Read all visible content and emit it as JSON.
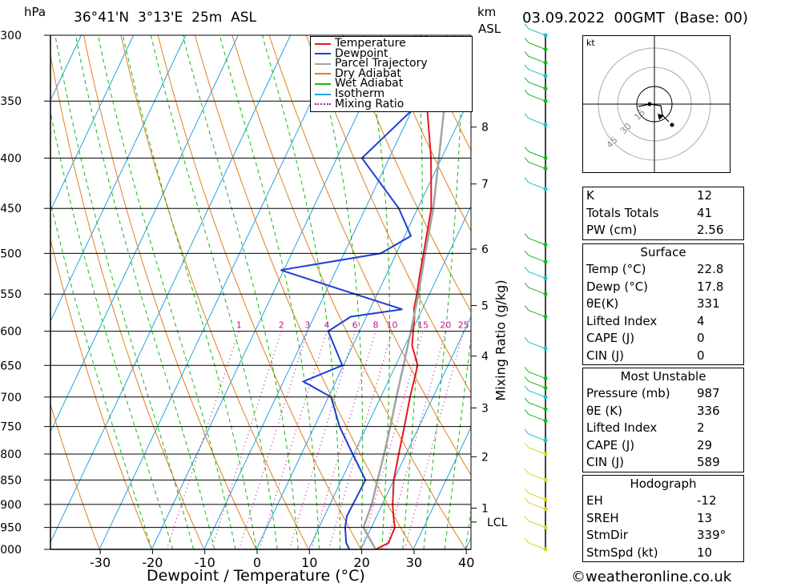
{
  "header": {
    "hpa_unit": "hPa",
    "location": "36°41'N  3°13'E  25m  ASL",
    "km_unit": "km",
    "asl_unit": "ASL",
    "datetime": "03.09.2022  00GMT  (Base: 00)"
  },
  "legend": [
    {
      "label": "Temperature",
      "color": "#e8171d",
      "style": "solid"
    },
    {
      "label": "Dewpoint",
      "color": "#1f3fd4",
      "style": "solid"
    },
    {
      "label": "Parcel Trajectory",
      "color": "#a3a3a3",
      "style": "solid"
    },
    {
      "label": "Dry Adiabat",
      "color": "#e0801c",
      "style": "solid"
    },
    {
      "label": "Wet Adiabat",
      "color": "#14b814",
      "style": "solid"
    },
    {
      "label": "Isotherm",
      "color": "#21a3e0",
      "style": "solid"
    },
    {
      "label": "Mixing Ratio",
      "color": "#c0148e",
      "style": "dotted"
    }
  ],
  "chart_data": {
    "type": "line",
    "title": "36°41'N  3°13'E  25m  ASL",
    "xlabel": "Dewpoint / Temperature (°C)",
    "ylabel": "hPa",
    "xlim": [
      -40,
      40
    ],
    "x_ticks": [
      -30,
      -20,
      -10,
      0,
      10,
      20,
      30,
      40
    ],
    "pressure_levels": [
      300,
      350,
      400,
      450,
      500,
      550,
      600,
      650,
      700,
      750,
      800,
      850,
      900,
      950,
      1000
    ],
    "y_scale": "log-pressure",
    "km_ticks": [
      {
        "label": "1",
        "p": 908
      },
      {
        "label": "2",
        "p": 805
      },
      {
        "label": "3",
        "p": 718
      },
      {
        "label": "4",
        "p": 636
      },
      {
        "label": "5",
        "p": 565
      },
      {
        "label": "6",
        "p": 495
      },
      {
        "label": "7",
        "p": 425
      },
      {
        "label": "8",
        "p": 372
      }
    ],
    "lcl": {
      "label": "LCL",
      "p": 938
    },
    "mixing_ratio_label": "Mixing Ratio (g/kg)",
    "mixing_ratios": [
      "1",
      "2",
      "3",
      "4",
      "6",
      "8",
      "10",
      "15",
      "20",
      "25"
    ],
    "series": [
      {
        "name": "Temperature",
        "points": [
          [
            1000,
            22.8
          ],
          [
            985,
            24.7
          ],
          [
            950,
            24.5
          ],
          [
            925,
            23.2
          ],
          [
            900,
            22.0
          ],
          [
            850,
            20.0
          ],
          [
            800,
            18.6
          ],
          [
            750,
            17.2
          ],
          [
            700,
            15.6
          ],
          [
            650,
            14.2
          ],
          [
            620,
            11.3
          ],
          [
            580,
            9.2
          ],
          [
            570,
            8.4
          ],
          [
            550,
            7.6
          ],
          [
            530,
            6.6
          ],
          [
            500,
            5.2
          ],
          [
            450,
            2.6
          ],
          [
            400,
            -2.0
          ],
          [
            350,
            -8.0
          ],
          [
            300,
            -15.0
          ]
        ]
      },
      {
        "name": "Dewpoint",
        "points": [
          [
            1000,
            17.8
          ],
          [
            985,
            16.6
          ],
          [
            950,
            15.0
          ],
          [
            925,
            14.3
          ],
          [
            900,
            14.4
          ],
          [
            850,
            14.6
          ],
          [
            800,
            9.8
          ],
          [
            750,
            4.8
          ],
          [
            700,
            0.5
          ],
          [
            675,
            -6.2
          ],
          [
            650,
            -0.2
          ],
          [
            600,
            -6.0
          ],
          [
            580,
            -3.0
          ],
          [
            570,
            6.2
          ],
          [
            520,
            -20.6
          ],
          [
            500,
            -3.0
          ],
          [
            480,
            1.2
          ],
          [
            450,
            -3.6
          ],
          [
            400,
            -15.2
          ],
          [
            350,
            -9.0
          ],
          [
            300,
            -14.0
          ]
        ]
      },
      {
        "name": "Parcel Trajectory",
        "points": [
          [
            1000,
            22.8
          ],
          [
            950,
            18.5
          ],
          [
            900,
            18.0
          ],
          [
            850,
            16.9
          ],
          [
            800,
            15.8
          ],
          [
            750,
            14.5
          ],
          [
            700,
            13.0
          ],
          [
            650,
            11.5
          ],
          [
            600,
            9.8
          ],
          [
            550,
            7.9
          ],
          [
            500,
            5.5
          ],
          [
            450,
            3.0
          ],
          [
            400,
            -0.5
          ],
          [
            350,
            -4.5
          ],
          [
            320,
            -8.0
          ],
          [
            310,
            -9.0
          ]
        ]
      }
    ]
  },
  "wind_barbs_levels": [
    300,
    310,
    320,
    330,
    340,
    350,
    370,
    400,
    410,
    430,
    490,
    510,
    530,
    550,
    580,
    625,
    670,
    685,
    700,
    720,
    740,
    775,
    800,
    850,
    890,
    910,
    950,
    1000
  ],
  "hodograph": {
    "unit": "kt",
    "rings": [
      "15",
      "30",
      "45"
    ]
  },
  "indices": [
    {
      "label": "K",
      "value": "12"
    },
    {
      "label": "Totals Totals",
      "value": "41"
    },
    {
      "label": "PW (cm)",
      "value": "2.56"
    }
  ],
  "surface": {
    "title": "Surface",
    "rows": [
      {
        "label": "Temp (°C)",
        "value": "22.8"
      },
      {
        "label": "Dewp (°C)",
        "value": "17.8"
      },
      {
        "label": "θE(K)",
        "value": "331"
      },
      {
        "label": "Lifted Index",
        "value": "4"
      },
      {
        "label": "CAPE (J)",
        "value": "0"
      },
      {
        "label": "CIN (J)",
        "value": "0"
      }
    ]
  },
  "most_unstable": {
    "title": "Most Unstable",
    "rows": [
      {
        "label": "Pressure (mb)",
        "value": "987"
      },
      {
        "label": "θE (K)",
        "value": "336"
      },
      {
        "label": "Lifted Index",
        "value": "2"
      },
      {
        "label": "CAPE (J)",
        "value": "29"
      },
      {
        "label": "CIN (J)",
        "value": "589"
      }
    ]
  },
  "hodograph_table": {
    "title": "Hodograph",
    "rows": [
      {
        "label": "EH",
        "value": "-12"
      },
      {
        "label": "SREH",
        "value": "13"
      },
      {
        "label": "StmDir",
        "value": "339°"
      },
      {
        "label": "StmSpd (kt)",
        "value": "10"
      }
    ]
  },
  "footer": {
    "copyright": "©weatheronline.co.uk"
  }
}
